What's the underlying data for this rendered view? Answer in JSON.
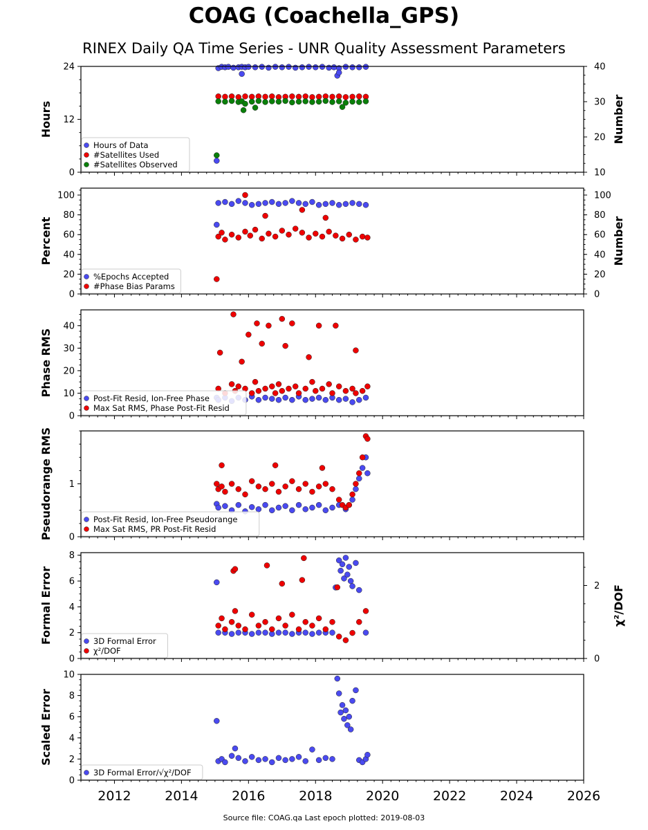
{
  "title": "COAG (Coachella_GPS)",
  "subtitle": "RINEX Daily QA Time Series - UNR Quality Assessment Parameters",
  "footer": "Source file: COAG.qa Last epoch plotted: 2019-08-03",
  "colors": {
    "blue": "#4a4af0",
    "red": "#ee0000",
    "green": "#0a7f0a",
    "axis": "#000000",
    "legend_border": "#cccccc"
  },
  "x_axis": {
    "min": 2011.0,
    "max": 2026.0,
    "ticks": [
      "2012",
      "2014",
      "2016",
      "2018",
      "2020",
      "2022",
      "2024",
      "2026"
    ]
  },
  "chart_data": [
    {
      "type": "scatter",
      "ylabel": "Hours",
      "ylabel_right": "Number",
      "ylim": [
        0,
        24
      ],
      "ylim_right": [
        10,
        40
      ],
      "yticks": [
        "0",
        "12",
        "24"
      ],
      "yticks_right": [
        "10",
        "20",
        "30",
        "40"
      ],
      "legend": {
        "position": "lower-left",
        "entries": [
          "Hours of Data",
          "#Satellites Used",
          "#Satellites Observed"
        ]
      },
      "series": [
        {
          "name": "Hours of Data",
          "color": "blue",
          "axis": "left",
          "x": [
            2015.05,
            2015.1,
            2015.2,
            2015.3,
            2015.4,
            2015.55,
            2015.7,
            2015.8,
            2015.9,
            2016.0,
            2016.2,
            2016.4,
            2016.6,
            2016.8,
            2017.0,
            2017.2,
            2017.4,
            2017.6,
            2017.8,
            2018.0,
            2018.2,
            2018.4,
            2018.55,
            2018.7,
            2018.9,
            2019.1,
            2019.3,
            2019.5,
            2015.8,
            2018.65,
            2018.7
          ],
          "y": [
            2.6,
            23.6,
            23.9,
            23.8,
            23.9,
            23.7,
            23.8,
            23.9,
            23.8,
            23.9,
            23.8,
            23.9,
            23.7,
            23.9,
            23.8,
            23.9,
            23.7,
            23.8,
            23.9,
            23.8,
            23.9,
            23.7,
            23.8,
            23.6,
            23.9,
            23.8,
            23.8,
            23.9,
            22.3,
            21.9,
            22.6
          ]
        },
        {
          "name": "#Satellites Used",
          "color": "red",
          "axis": "right",
          "x": [
            2015.1,
            2015.3,
            2015.5,
            2015.7,
            2015.9,
            2016.1,
            2016.3,
            2016.5,
            2016.7,
            2016.9,
            2017.1,
            2017.3,
            2017.5,
            2017.7,
            2017.9,
            2018.1,
            2018.3,
            2018.5,
            2018.7,
            2018.9,
            2019.1,
            2019.3,
            2019.5
          ],
          "y": [
            31.5,
            31.4,
            31.5,
            31.3,
            31.5,
            31.4,
            31.5,
            31.4,
            31.5,
            31.3,
            31.4,
            31.5,
            31.4,
            31.5,
            31.3,
            31.4,
            31.5,
            31.4,
            31.5,
            31.3,
            31.4,
            31.5,
            31.4
          ]
        },
        {
          "name": "#Satellites Observed",
          "color": "green",
          "axis": "right",
          "x": [
            2015.05,
            2015.1,
            2015.3,
            2015.5,
            2015.7,
            2015.8,
            2015.9,
            2016.1,
            2016.3,
            2016.5,
            2016.7,
            2016.9,
            2017.1,
            2017.3,
            2017.5,
            2017.7,
            2017.9,
            2018.1,
            2018.3,
            2018.5,
            2018.7,
            2018.9,
            2019.1,
            2019.3,
            2019.5,
            2015.85,
            2016.2,
            2018.8
          ],
          "y": [
            14.8,
            30.1,
            30.0,
            30.2,
            29.9,
            30.1,
            29.4,
            30.0,
            30.2,
            29.9,
            30.1,
            30.0,
            30.2,
            29.8,
            30.0,
            30.1,
            29.9,
            30.0,
            30.2,
            29.9,
            30.1,
            29.7,
            30.0,
            29.9,
            30.1,
            27.6,
            28.3,
            28.5
          ]
        }
      ]
    },
    {
      "type": "scatter",
      "ylabel": "Percent",
      "ylabel_right": "Number",
      "ylim": [
        0,
        107
      ],
      "ylim_right": [
        0,
        107
      ],
      "yticks": [
        "0",
        "20",
        "40",
        "60",
        "80",
        "100"
      ],
      "yticks_right": [
        "0",
        "20",
        "40",
        "60",
        "80",
        "100"
      ],
      "legend": {
        "position": "lower-left",
        "entries": [
          "%Epochs Accepted",
          "#Phase Bias Params"
        ]
      },
      "series": [
        {
          "name": "%Epochs Accepted",
          "color": "blue",
          "axis": "left",
          "x": [
            2015.05,
            2015.1,
            2015.3,
            2015.5,
            2015.7,
            2015.9,
            2016.1,
            2016.3,
            2016.5,
            2016.7,
            2016.9,
            2017.1,
            2017.3,
            2017.5,
            2017.7,
            2017.9,
            2018.1,
            2018.3,
            2018.5,
            2018.7,
            2018.9,
            2019.1,
            2019.3,
            2019.5
          ],
          "y": [
            70,
            92,
            93,
            91,
            94,
            92,
            90,
            91,
            92,
            93,
            91,
            92,
            94,
            92,
            91,
            93,
            90,
            91,
            92,
            90,
            91,
            92,
            91,
            90
          ]
        },
        {
          "name": "#Phase Bias Params",
          "color": "red",
          "axis": "right",
          "x": [
            2015.05,
            2015.1,
            2015.2,
            2015.3,
            2015.5,
            2015.7,
            2015.9,
            2016.05,
            2016.2,
            2016.4,
            2016.6,
            2016.8,
            2017.0,
            2017.2,
            2017.4,
            2017.6,
            2017.8,
            2018.0,
            2018.2,
            2018.4,
            2018.6,
            2018.8,
            2019.0,
            2019.2,
            2019.4,
            2019.55,
            2015.9,
            2016.5,
            2017.6,
            2018.3
          ],
          "y": [
            15,
            58,
            62,
            55,
            60,
            57,
            63,
            59,
            65,
            56,
            61,
            58,
            64,
            60,
            66,
            62,
            57,
            61,
            58,
            63,
            59,
            56,
            60,
            55,
            58,
            57,
            100,
            79,
            85,
            77
          ]
        }
      ]
    },
    {
      "type": "scatter",
      "ylabel": "Phase RMS",
      "ylim": [
        0,
        47
      ],
      "yticks": [
        "0",
        "10",
        "20",
        "30",
        "40"
      ],
      "legend": {
        "position": "lower-left",
        "entries": [
          "Post-Fit Resid, Ion-Free Phase",
          "Max Sat RMS, Phase Post-Fit Resid"
        ]
      },
      "series": [
        {
          "name": "Post-Fit Resid, Ion-Free Phase",
          "color": "blue",
          "axis": "left",
          "x": [
            2015.05,
            2015.1,
            2015.3,
            2015.5,
            2015.7,
            2015.9,
            2016.1,
            2016.3,
            2016.5,
            2016.7,
            2016.9,
            2017.1,
            2017.3,
            2017.5,
            2017.7,
            2017.9,
            2018.1,
            2018.3,
            2018.5,
            2018.7,
            2018.9,
            2019.1,
            2019.3,
            2019.5
          ],
          "y": [
            8,
            7,
            8,
            6.5,
            8,
            7,
            8.5,
            7,
            8,
            7.5,
            7,
            8,
            7,
            8.5,
            7,
            7.5,
            8,
            7,
            8,
            7,
            7.5,
            6,
            7,
            8
          ]
        },
        {
          "name": "Max Sat RMS, Phase Post-Fit Resid",
          "color": "red",
          "axis": "left",
          "x": [
            2015.1,
            2015.15,
            2015.3,
            2015.5,
            2015.6,
            2015.7,
            2015.9,
            2016.1,
            2016.2,
            2016.3,
            2016.5,
            2016.7,
            2016.8,
            2016.9,
            2017.0,
            2017.2,
            2017.4,
            2017.5,
            2017.7,
            2017.9,
            2018.0,
            2018.2,
            2018.4,
            2018.5,
            2018.7,
            2018.9,
            2019.1,
            2019.2,
            2019.4,
            2019.55,
            2015.55,
            2015.8,
            2016.25,
            2016.6,
            2017.0,
            2017.3,
            2018.1,
            2018.6,
            2019.2,
            2016.0,
            2016.4,
            2017.1,
            2017.8
          ],
          "y": [
            12,
            28,
            10,
            14,
            11,
            13,
            12,
            10,
            15,
            11,
            12,
            13,
            10,
            14,
            11,
            12,
            13,
            10,
            12,
            15,
            11,
            12,
            14,
            10,
            13,
            11,
            12,
            10,
            11,
            13,
            45,
            24,
            41,
            40,
            43,
            41,
            40,
            40,
            29,
            36,
            32,
            31,
            26
          ]
        }
      ]
    },
    {
      "type": "scatter",
      "ylabel": "Pseudorange RMS",
      "ylim": [
        0,
        2.0
      ],
      "yticks": [
        "0",
        "1"
      ],
      "legend": {
        "position": "lower-left",
        "entries": [
          "Post-Fit Resid, Ion-Free Pseudorange",
          "Max Sat RMS, PR Post-Fit Resid"
        ]
      },
      "series": [
        {
          "name": "Post-Fit Resid, Ion-Free Pseudorange",
          "color": "blue",
          "axis": "left",
          "x": [
            2015.05,
            2015.1,
            2015.3,
            2015.5,
            2015.7,
            2015.9,
            2016.1,
            2016.3,
            2016.5,
            2016.7,
            2016.9,
            2017.1,
            2017.3,
            2017.5,
            2017.7,
            2017.9,
            2018.1,
            2018.3,
            2018.5,
            2018.7,
            2018.9,
            2019.0,
            2019.1,
            2019.2,
            2019.3,
            2019.4,
            2019.5,
            2019.55
          ],
          "y": [
            0.62,
            0.55,
            0.58,
            0.5,
            0.6,
            0.48,
            0.56,
            0.52,
            0.6,
            0.5,
            0.55,
            0.58,
            0.5,
            0.6,
            0.52,
            0.55,
            0.6,
            0.5,
            0.55,
            0.6,
            0.52,
            0.6,
            0.7,
            0.9,
            1.1,
            1.3,
            1.5,
            1.2
          ]
        },
        {
          "name": "Max Sat RMS, PR Post-Fit Resid",
          "color": "red",
          "axis": "left",
          "x": [
            2015.05,
            2015.1,
            2015.2,
            2015.3,
            2015.5,
            2015.7,
            2015.9,
            2016.1,
            2016.3,
            2016.5,
            2016.7,
            2016.9,
            2017.1,
            2017.3,
            2017.5,
            2017.7,
            2017.9,
            2018.1,
            2018.3,
            2018.5,
            2018.7,
            2018.8,
            2018.9,
            2019.0,
            2019.1,
            2019.2,
            2019.3,
            2019.4,
            2019.5,
            2019.55,
            2015.2,
            2016.8,
            2018.2
          ],
          "y": [
            1.0,
            0.9,
            0.95,
            0.85,
            1.0,
            0.9,
            0.8,
            1.05,
            0.95,
            0.9,
            1.0,
            0.85,
            0.95,
            1.05,
            0.9,
            1.0,
            0.85,
            0.95,
            1.0,
            0.9,
            0.7,
            0.6,
            0.55,
            0.6,
            0.8,
            1.0,
            1.2,
            1.5,
            1.9,
            1.85,
            1.35,
            1.35,
            1.3
          ]
        }
      ]
    },
    {
      "type": "scatter",
      "ylabel": "Formal Error",
      "ylabel_right": "χ²/DOF",
      "ylim": [
        0,
        8.2
      ],
      "ylim_right": [
        0,
        2.9
      ],
      "yticks": [
        "0",
        "2",
        "4",
        "6",
        "8"
      ],
      "yticks_right": [
        "0",
        "2"
      ],
      "legend": {
        "position": "lower-left",
        "entries": [
          "3D Formal Error",
          "χ²/DOF"
        ]
      },
      "series": [
        {
          "name": "3D Formal Error",
          "color": "blue",
          "axis": "left",
          "x": [
            2015.05,
            2015.1,
            2015.3,
            2015.5,
            2015.7,
            2015.9,
            2016.1,
            2016.3,
            2016.5,
            2016.7,
            2016.9,
            2017.1,
            2017.3,
            2017.5,
            2017.7,
            2017.9,
            2018.1,
            2018.3,
            2018.5,
            2018.6,
            2018.7,
            2018.75,
            2018.8,
            2018.85,
            2018.9,
            2018.95,
            2019.0,
            2019.05,
            2019.1,
            2019.2,
            2019.3,
            2019.5
          ],
          "y": [
            5.9,
            2.0,
            2.0,
            1.9,
            2.0,
            2.0,
            1.9,
            2.0,
            2.0,
            1.9,
            2.0,
            2.0,
            1.9,
            2.0,
            2.0,
            1.9,
            2.0,
            2.0,
            2.0,
            5.5,
            7.6,
            6.8,
            7.3,
            6.2,
            7.8,
            6.5,
            7.1,
            6.0,
            5.6,
            7.4,
            5.3,
            2.0
          ]
        },
        {
          "name": "χ²/DOF",
          "color": "red",
          "axis": "right",
          "x": [
            2015.1,
            2015.2,
            2015.3,
            2015.5,
            2015.6,
            2015.7,
            2015.9,
            2016.1,
            2016.3,
            2016.5,
            2016.7,
            2016.9,
            2017.1,
            2017.3,
            2017.5,
            2017.7,
            2017.9,
            2018.1,
            2018.3,
            2018.5,
            2018.7,
            2018.9,
            2019.1,
            2019.3,
            2019.5,
            2015.55,
            2015.6,
            2016.55,
            2017.0,
            2017.6,
            2017.65,
            2018.65
          ],
          "y": [
            0.9,
            1.1,
            0.8,
            1.0,
            1.3,
            0.9,
            0.8,
            1.2,
            0.9,
            1.0,
            0.8,
            1.1,
            0.9,
            1.2,
            0.8,
            1.0,
            0.9,
            1.1,
            0.8,
            1.0,
            0.6,
            0.5,
            0.7,
            1.0,
            1.3,
            2.4,
            2.45,
            2.55,
            2.05,
            2.15,
            2.75,
            1.95
          ]
        }
      ]
    },
    {
      "type": "scatter",
      "ylabel": "Scaled Error",
      "ylim": [
        0,
        10
      ],
      "yticks": [
        "0",
        "2",
        "4",
        "6",
        "8",
        "10"
      ],
      "legend": {
        "position": "lower-left",
        "entries": [
          "3D Formal Error/√χ²/DOF"
        ]
      },
      "series": [
        {
          "name": "3D Formal Error/√χ²/DOF",
          "color": "blue",
          "axis": "left",
          "x": [
            2015.05,
            2015.1,
            2015.2,
            2015.3,
            2015.5,
            2015.6,
            2015.7,
            2015.9,
            2016.1,
            2016.3,
            2016.5,
            2016.7,
            2016.9,
            2017.1,
            2017.3,
            2017.5,
            2017.7,
            2017.9,
            2018.1,
            2018.3,
            2018.5,
            2018.65,
            2018.7,
            2018.75,
            2018.8,
            2018.85,
            2018.9,
            2018.95,
            2019.0,
            2019.05,
            2019.1,
            2019.2,
            2019.3,
            2019.4,
            2019.5,
            2019.55
          ],
          "y": [
            5.6,
            1.8,
            2.0,
            1.7,
            2.3,
            3.0,
            2.1,
            1.8,
            2.2,
            1.9,
            2.0,
            1.7,
            2.1,
            1.9,
            2.0,
            2.2,
            1.8,
            2.9,
            1.9,
            2.1,
            2.0,
            9.6,
            8.2,
            6.4,
            7.1,
            5.8,
            6.6,
            5.2,
            6.0,
            4.8,
            7.5,
            8.5,
            1.9,
            1.7,
            2.0,
            2.4
          ]
        }
      ]
    }
  ]
}
